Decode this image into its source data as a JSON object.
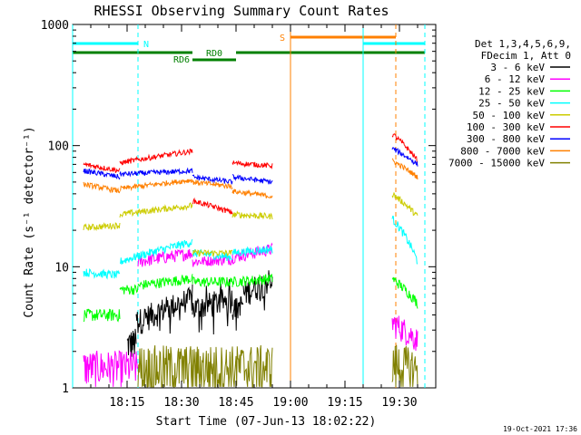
{
  "chart_data": {
    "type": "line",
    "title": "RHESSI Observing Summary Count Rates",
    "xlabel": "Start Time (07-Jun-13 18:02:22)",
    "ylabel": "Count Rate (s⁻¹ detector⁻¹)",
    "yscale": "log",
    "xlim": [
      0,
      100
    ],
    "ylim": [
      1,
      1000
    ],
    "x_ticks": [
      {
        "t": 15,
        "label": "18:15"
      },
      {
        "t": 30,
        "label": "18:30"
      },
      {
        "t": 45,
        "label": "18:45"
      },
      {
        "t": 60,
        "label": "19:00"
      },
      {
        "t": 75,
        "label": "19:15"
      },
      {
        "t": 90,
        "label": "19:30"
      }
    ],
    "y_ticks": [
      {
        "v": 1,
        "label": "1"
      },
      {
        "v": 10,
        "label": "10"
      },
      {
        "v": 100,
        "label": "100"
      },
      {
        "v": 1000,
        "label": "1000"
      }
    ],
    "legend_header": [
      "Det 1,3,4,5,6,9,",
      "FDecim 1, Att 0"
    ],
    "footer_date": "19-Oct-2021 17:36",
    "series": [
      {
        "name": "3 - 6 keV",
        "color": "#000000",
        "segments": [
          {
            "t0": 15,
            "t1": 17.5,
            "v0": 2.3,
            "v1": 2.4,
            "noise": 0.3
          },
          {
            "t0": 17.5,
            "t1": 33,
            "v0": 3.5,
            "v1": 5.5,
            "noise": 0.25
          },
          {
            "t0": 33,
            "t1": 44,
            "v0": 4.5,
            "v1": 5.5,
            "noise": 0.25
          },
          {
            "t0": 44,
            "t1": 47,
            "v0": 4.5,
            "v1": 5,
            "noise": 0.2
          },
          {
            "t0": 47,
            "t1": 55,
            "v0": 6,
            "v1": 8,
            "noise": 0.25
          }
        ]
      },
      {
        "name": "6 - 12 keV",
        "color": "#ff00ff",
        "segments": [
          {
            "t0": 3,
            "t1": 18,
            "v0": 1.5,
            "v1": 1.5,
            "noise": 0.35
          },
          {
            "t0": 18,
            "t1": 33,
            "v0": 11,
            "v1": 13,
            "noise": 0.12
          },
          {
            "t0": 33,
            "t1": 44,
            "v0": 11,
            "v1": 11.5,
            "noise": 0.1
          },
          {
            "t0": 44,
            "t1": 55,
            "v0": 12,
            "v1": 14,
            "noise": 0.12
          },
          {
            "t0": 88,
            "t1": 95,
            "v0": 3.5,
            "v1": 2.5,
            "noise": 0.25
          }
        ]
      },
      {
        "name": "12 - 25 keV",
        "color": "#00ff00",
        "segments": [
          {
            "t0": 3,
            "t1": 13,
            "v0": 4,
            "v1": 4,
            "noise": 0.12
          },
          {
            "t0": 13,
            "t1": 18,
            "v0": 6.5,
            "v1": 6.5,
            "noise": 0.1
          },
          {
            "t0": 18,
            "t1": 33,
            "v0": 7,
            "v1": 8,
            "noise": 0.1
          },
          {
            "t0": 33,
            "t1": 44,
            "v0": 7.5,
            "v1": 7.5,
            "noise": 0.1
          },
          {
            "t0": 44,
            "t1": 55,
            "v0": 7.5,
            "v1": 8,
            "noise": 0.1
          },
          {
            "t0": 88,
            "t1": 95,
            "v0": 8,
            "v1": 5,
            "noise": 0.1
          }
        ]
      },
      {
        "name": "25 - 50 keV",
        "color": "#00ffff",
        "segments": [
          {
            "t0": 3,
            "t1": 13,
            "v0": 9,
            "v1": 8.5,
            "noise": 0.08
          },
          {
            "t0": 13,
            "t1": 33,
            "v0": 11,
            "v1": 16,
            "noise": 0.08
          },
          {
            "t0": 33,
            "t1": 44,
            "v0": 13,
            "v1": 12,
            "noise": 0.08
          },
          {
            "t0": 44,
            "t1": 55,
            "v0": 13,
            "v1": 14,
            "noise": 0.08
          },
          {
            "t0": 88,
            "t1": 95,
            "v0": 25,
            "v1": 11,
            "noise": 0.08
          }
        ]
      },
      {
        "name": "50 - 100 keV",
        "color": "#cccc00",
        "segments": [
          {
            "t0": 3,
            "t1": 13,
            "v0": 21,
            "v1": 22,
            "noise": 0.06
          },
          {
            "t0": 13,
            "t1": 33,
            "v0": 27,
            "v1": 32,
            "noise": 0.06
          },
          {
            "t0": 33,
            "t1": 44,
            "v0": 13,
            "v1": 13,
            "noise": 0.06
          },
          {
            "t0": 44,
            "t1": 55,
            "v0": 27,
            "v1": 26,
            "noise": 0.06
          },
          {
            "t0": 88,
            "t1": 95,
            "v0": 40,
            "v1": 26,
            "noise": 0.06
          }
        ]
      },
      {
        "name": "100 - 300 keV",
        "color": "#ff0000",
        "segments": [
          {
            "t0": 3,
            "t1": 13,
            "v0": 70,
            "v1": 62,
            "noise": 0.05
          },
          {
            "t0": 13,
            "t1": 33,
            "v0": 72,
            "v1": 90,
            "noise": 0.05
          },
          {
            "t0": 33,
            "t1": 44,
            "v0": 35,
            "v1": 28,
            "noise": 0.05
          },
          {
            "t0": 44,
            "t1": 55,
            "v0": 72,
            "v1": 68,
            "noise": 0.05
          },
          {
            "t0": 88,
            "t1": 95,
            "v0": 125,
            "v1": 75,
            "noise": 0.05
          }
        ]
      },
      {
        "name": "300 - 800 keV",
        "color": "#0000ff",
        "segments": [
          {
            "t0": 3,
            "t1": 13,
            "v0": 62,
            "v1": 55,
            "noise": 0.05
          },
          {
            "t0": 13,
            "t1": 33,
            "v0": 58,
            "v1": 62,
            "noise": 0.05
          },
          {
            "t0": 33,
            "t1": 44,
            "v0": 55,
            "v1": 50,
            "noise": 0.05
          },
          {
            "t0": 44,
            "t1": 55,
            "v0": 55,
            "v1": 50,
            "noise": 0.05
          },
          {
            "t0": 88,
            "t1": 95,
            "v0": 95,
            "v1": 70,
            "noise": 0.05
          }
        ]
      },
      {
        "name": "800 - 7000 keV",
        "color": "#ff8000",
        "segments": [
          {
            "t0": 3,
            "t1": 13,
            "v0": 48,
            "v1": 42,
            "noise": 0.05
          },
          {
            "t0": 13,
            "t1": 33,
            "v0": 44,
            "v1": 52,
            "noise": 0.05
          },
          {
            "t0": 33,
            "t1": 44,
            "v0": 50,
            "v1": 46,
            "noise": 0.05
          },
          {
            "t0": 44,
            "t1": 55,
            "v0": 42,
            "v1": 38,
            "noise": 0.05
          },
          {
            "t0": 88,
            "t1": 95,
            "v0": 75,
            "v1": 55,
            "noise": 0.05
          }
        ]
      },
      {
        "name": "7000 - 15000 keV",
        "color": "#808000",
        "segments": [
          {
            "t0": 18,
            "t1": 55,
            "v0": 1.5,
            "v1": 1.5,
            "noise": 0.5
          },
          {
            "t0": 88,
            "t1": 95,
            "v0": 1.6,
            "v1": 1.4,
            "noise": 0.5
          }
        ]
      }
    ],
    "flags": [
      {
        "label": "N",
        "color": "#00ffff",
        "intervals": [
          {
            "t0": 0,
            "t1": 18
          },
          {
            "t0": 80,
            "t1": 97
          }
        ],
        "level": 0
      },
      {
        "label": "S",
        "color": "#ff8000",
        "intervals": [
          {
            "t0": 60,
            "t1": 89
          }
        ],
        "level": -1
      },
      {
        "label": "RD0",
        "color": "#008000",
        "intervals": [
          {
            "t0": 33,
            "t1": 45
          }
        ],
        "level": 2
      },
      {
        "label": "RD6",
        "color": "#008000",
        "intervals": [
          {
            "t0": 0,
            "t1": 33
          },
          {
            "t0": 45,
            "t1": 97
          }
        ],
        "level": 1
      }
    ],
    "vlines": [
      {
        "t": 0,
        "color": "#00ffff",
        "dashed": false
      },
      {
        "t": 18,
        "color": "#00ffff",
        "dashed": true
      },
      {
        "t": 60,
        "color": "#ff8000",
        "dashed": false
      },
      {
        "t": 80,
        "color": "#00ffff",
        "dashed": false
      },
      {
        "t": 89,
        "color": "#ff8000",
        "dashed": true
      },
      {
        "t": 97,
        "color": "#00ffff",
        "dashed": true
      }
    ]
  }
}
